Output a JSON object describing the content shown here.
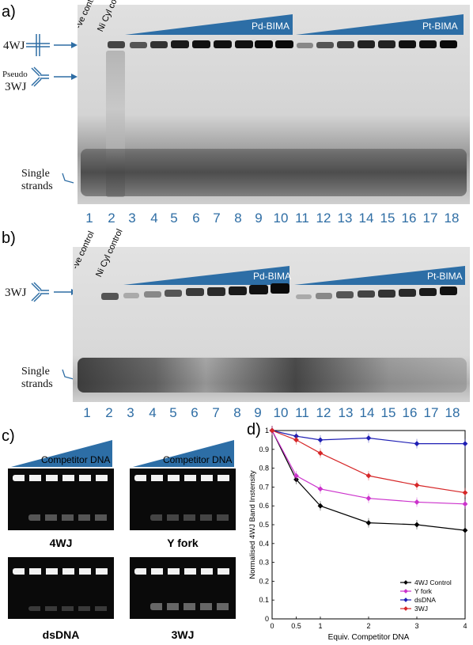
{
  "panels": {
    "a": "a)",
    "b": "b)",
    "c": "c)",
    "d": "d)"
  },
  "gel_a": {
    "labels": {
      "neg_control": "-ve control",
      "ni_control": "Ni Cyl control",
      "pd": "Pd-BIMA",
      "pt": "Pt-BIMA"
    },
    "left": {
      "wj4": "4WJ",
      "pseudo": "Pseudo",
      "wj3": "3WJ",
      "single1": "Single",
      "single2": "strands"
    },
    "lanes": [
      "1",
      "2",
      "3",
      "4",
      "5",
      "6",
      "7",
      "8",
      "9",
      "10",
      "11",
      "12",
      "13",
      "14",
      "15",
      "16",
      "17",
      "18"
    ]
  },
  "gel_b": {
    "labels": {
      "neg_control": "-ve control",
      "ni_control": "Ni Cyl control",
      "pd": "Pd-BIMA",
      "pt": "Pt-BIMA"
    },
    "left": {
      "wj3": "3WJ",
      "single1": "Single",
      "single2": "strands"
    },
    "lanes": [
      "1",
      "2",
      "3",
      "4",
      "5",
      "6",
      "7",
      "8",
      "9",
      "10",
      "11",
      "12",
      "13",
      "14",
      "15",
      "16",
      "17",
      "18"
    ]
  },
  "panel_c": {
    "competitor": "Competitor DNA",
    "captions": {
      "wj4": "4WJ",
      "yfork": "Y fork",
      "dsdna": "dsDNA",
      "wj3": "3WJ"
    }
  },
  "chart_data": {
    "type": "line",
    "xlabel": "Equiv. Competitor DNA",
    "ylabel": "Normalised 4WJ Band Instensity",
    "xlim": [
      0,
      4
    ],
    "ylim": [
      0,
      1
    ],
    "xticks": [
      "0",
      "0.5",
      "1",
      "2",
      "3",
      "4"
    ],
    "yticks": [
      "0",
      "0.1",
      "0.2",
      "0.3",
      "0.4",
      "0.5",
      "0.6",
      "0.7",
      "0.8",
      "0.9",
      "1"
    ],
    "x": [
      0,
      0.5,
      1,
      2,
      3,
      4
    ],
    "legend_position": "bottom-right",
    "series": [
      {
        "name": "4WJ Control",
        "color": "#000000",
        "values": [
          1.0,
          0.74,
          0.6,
          0.51,
          0.5,
          0.47
        ]
      },
      {
        "name": "Y fork",
        "color": "#cc33cc",
        "values": [
          1.0,
          0.76,
          0.69,
          0.64,
          0.62,
          0.61
        ]
      },
      {
        "name": "dsDNA",
        "color": "#1f1fb4",
        "values": [
          1.0,
          0.97,
          0.95,
          0.96,
          0.93,
          0.93
        ]
      },
      {
        "name": "3WJ",
        "color": "#d62728",
        "values": [
          1.0,
          0.95,
          0.88,
          0.76,
          0.71,
          0.67
        ]
      }
    ]
  }
}
